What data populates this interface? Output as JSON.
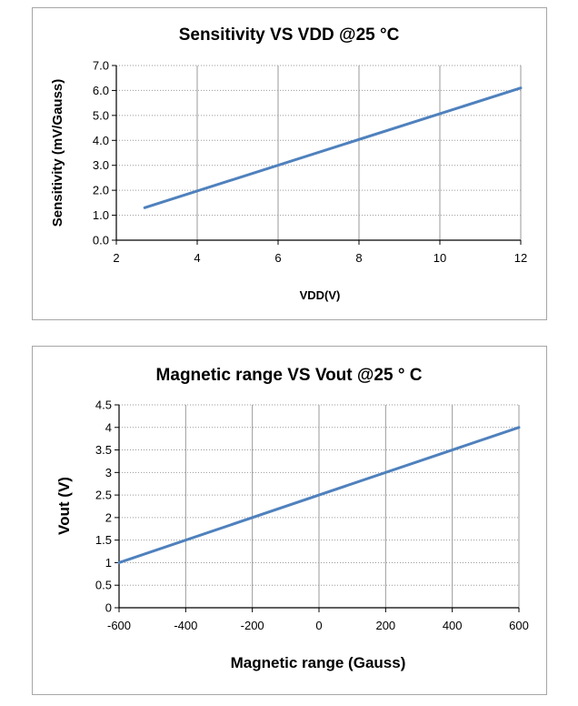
{
  "chart_data": [
    {
      "type": "line",
      "title": "Sensitivity VS  VDD @25 °C",
      "xlabel": "VDD(V)",
      "ylabel": "Sensitivity (mV/Gauss)",
      "xlim": [
        2,
        12
      ],
      "ylim": [
        0,
        7
      ],
      "x_ticks": [
        "2",
        "4",
        "6",
        "8",
        "10",
        "12"
      ],
      "y_ticks": [
        "0.0",
        "1.0",
        "2.0",
        "3.0",
        "4.0",
        "5.0",
        "6.0",
        "7.0"
      ],
      "grid": "vertical-solid, horizontal-dotted",
      "series": [
        {
          "color": "#4f81bd",
          "x": [
            2.7,
            12
          ],
          "y": [
            1.3,
            6.1
          ]
        }
      ]
    },
    {
      "type": "line",
      "title": "Magnetic range VS Vout @25 ° C",
      "xlabel": "Magnetic range (Gauss)",
      "ylabel": "Vout (V)",
      "xlim": [
        -600,
        600
      ],
      "ylim": [
        0,
        4.5
      ],
      "x_ticks": [
        "-600",
        "-400",
        "-200",
        "0",
        "200",
        "400",
        "600"
      ],
      "y_ticks": [
        "0",
        "0.5",
        "1",
        "1.5",
        "2",
        "2.5",
        "3",
        "3.5",
        "4",
        "4.5"
      ],
      "grid": "vertical-solid, horizontal-dotted",
      "series": [
        {
          "color": "#4f81bd",
          "x": [
            -600,
            600
          ],
          "y": [
            1.0,
            4.0
          ]
        }
      ]
    }
  ]
}
